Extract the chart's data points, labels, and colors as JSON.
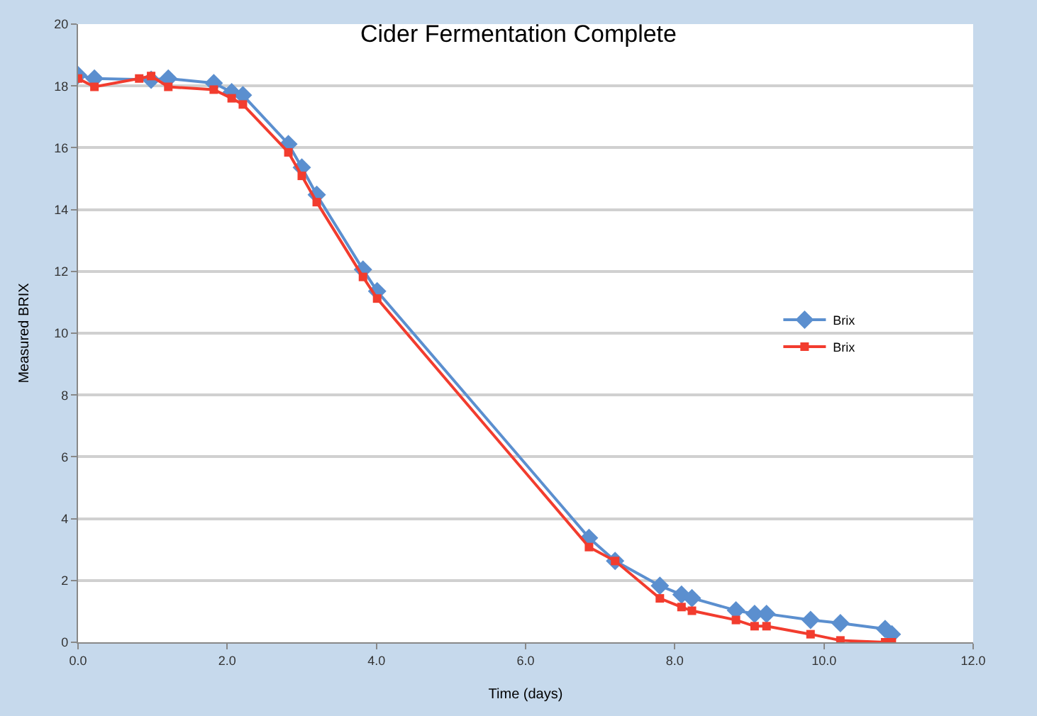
{
  "chart_data": {
    "type": "line",
    "title": "Cider Fermentation Complete",
    "xlabel": "Time (days)",
    "ylabel": "Measured BRIX",
    "xlim": [
      0,
      12
    ],
    "xticks": [
      {
        "value": 0,
        "label": "0.0"
      },
      {
        "value": 2,
        "label": "2.0"
      },
      {
        "value": 4,
        "label": "4.0"
      },
      {
        "value": 6,
        "label": "6.0"
      },
      {
        "value": 8,
        "label": "8.0"
      },
      {
        "value": 10,
        "label": "10.0"
      },
      {
        "value": 12,
        "label": "12.0"
      }
    ],
    "ylim": [
      0,
      20
    ],
    "yticks": [
      0,
      2,
      4,
      6,
      8,
      10,
      12,
      14,
      16,
      18,
      20
    ],
    "grid": "y",
    "legend": "right",
    "series": [
      {
        "name": "Brix",
        "color": "#5b8fcf",
        "marker": "diamond",
        "x": [
          0,
          0.22,
          0.98,
          1.21,
          1.82,
          2.06,
          2.21,
          2.82,
          3.0,
          3.2,
          3.82,
          4.01,
          6.85,
          7.2,
          7.8,
          8.09,
          8.23,
          8.82,
          9.07,
          9.23,
          9.82,
          10.22,
          10.82,
          10.91
        ],
        "values": [
          18.35,
          18.24,
          18.2,
          18.24,
          18.09,
          17.8,
          17.7,
          16.12,
          15.36,
          14.48,
          12.06,
          11.36,
          3.38,
          2.63,
          1.83,
          1.54,
          1.43,
          1.03,
          0.92,
          0.92,
          0.72,
          0.62,
          0.43,
          0.26
        ]
      },
      {
        "name": "Brix",
        "color": "#f23c2e",
        "marker": "square",
        "x": [
          0,
          0.22,
          0.82,
          0.98,
          1.21,
          1.82,
          2.06,
          2.21,
          2.82,
          3.0,
          3.2,
          3.82,
          4.01,
          6.85,
          7.2,
          7.8,
          8.09,
          8.23,
          8.82,
          9.07,
          9.23,
          9.82,
          10.22,
          10.82,
          10.91
        ],
        "values": [
          18.24,
          17.97,
          18.24,
          18.32,
          17.97,
          17.88,
          17.6,
          17.4,
          15.85,
          15.09,
          14.24,
          11.82,
          11.12,
          3.08,
          2.63,
          1.42,
          1.14,
          1.02,
          0.72,
          0.52,
          0.52,
          0.26,
          0.06,
          0,
          0
        ]
      }
    ]
  }
}
